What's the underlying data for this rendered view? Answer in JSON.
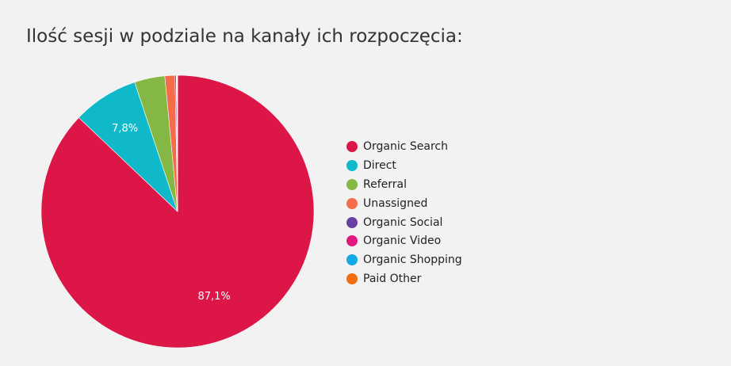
{
  "title": "Ilość sesji w podziale na kanały ich rozpoczęcia:",
  "chart_data": {
    "type": "pie",
    "title": "Ilość sesji w podziale na kanały ich rozpoczęcia:",
    "start_angle_deg": 0,
    "direction": "clockwise",
    "legend_position": "right",
    "categories": [
      "Organic Search",
      "Direct",
      "Referral",
      "Unassigned",
      "Organic Social",
      "Organic Video",
      "Organic Shopping",
      "Paid Other"
    ],
    "values": [
      87.1,
      7.8,
      3.6,
      1.2,
      0.15,
      0.05,
      0.05,
      0.05
    ],
    "colors": [
      "#dc1747",
      "#0fb9c9",
      "#84b743",
      "#f46c4a",
      "#6a3fa4",
      "#e5167f",
      "#11a9e6",
      "#f06e0c"
    ],
    "data_labels": [
      "87,1%",
      "7,8%",
      "",
      "",
      "",
      "",
      "",
      ""
    ]
  }
}
